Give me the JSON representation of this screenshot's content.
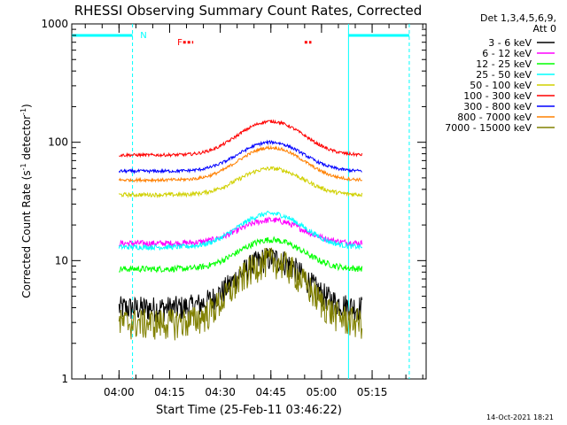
{
  "chart_data": {
    "type": "line",
    "title": "RHESSI Observing Summary Count Rates, Corrected",
    "xlabel": "Start Time (25-Feb-11 03:46:22)",
    "ylabel_main": "Corrected Count Rate (s",
    "ylabel_sup1": "-1",
    "ylabel_mid": " detector",
    "ylabel_sup2": "-1",
    "ylabel_end": ")",
    "yscale": "log",
    "ylim": [
      1,
      1000
    ],
    "xlim_minutes": [
      0,
      105
    ],
    "x_ticks": [
      "04:00",
      "04:15",
      "04:30",
      "04:45",
      "05:00",
      "05:15"
    ],
    "x_tick_minutes": [
      14,
      29,
      44,
      59,
      74,
      89
    ],
    "y_ticks": [
      "1",
      "10",
      "100",
      "1000"
    ],
    "y_tick_values": [
      1,
      10,
      100,
      1000
    ],
    "grid": false,
    "legend_position": "right",
    "legend_header": [
      "Det 1,3,4,5,6,9,",
      "Att 0"
    ],
    "timestamp": "14-Oct-2021 18:21",
    "annotations": [
      {
        "text": "N",
        "color": "#00ffff"
      },
      {
        "text": "F",
        "color": "#ff0000"
      }
    ],
    "night_intervals_minutes": [
      [
        0,
        18
      ],
      [
        82,
        100
      ]
    ],
    "night_level": 800,
    "flare_flags_minutes": [
      [
        33,
        36
      ],
      [
        69,
        71
      ]
    ],
    "flare_flag_level": 700,
    "data_start_minute": 14,
    "data_end_minute": 86,
    "series": [
      {
        "name": "3 - 6 keV",
        "color": "#000000",
        "base": 4,
        "peak": 10.5,
        "noise": 0.25
      },
      {
        "name": "6 - 12 keV",
        "color": "#ff00ff",
        "base": 14,
        "peak": 22,
        "noise": 0.06
      },
      {
        "name": "12 - 25 keV",
        "color": "#00ff00",
        "base": 8.5,
        "peak": 15,
        "noise": 0.06
      },
      {
        "name": "25 - 50 keV",
        "color": "#00ffff",
        "base": 13,
        "peak": 25,
        "noise": 0.05
      },
      {
        "name": "50 - 100 keV",
        "color": "#d0d000",
        "base": 36,
        "peak": 60,
        "noise": 0.04
      },
      {
        "name": "100 - 300 keV",
        "color": "#ff0000",
        "base": 78,
        "peak": 150,
        "noise": 0.03
      },
      {
        "name": "300 - 800 keV",
        "color": "#0000ff",
        "base": 57,
        "peak": 100,
        "noise": 0.03
      },
      {
        "name": "800 - 7000 keV",
        "color": "#ff8000",
        "base": 48,
        "peak": 90,
        "noise": 0.03
      },
      {
        "name": "7000 - 15000 keV",
        "color": "#808000",
        "base": 3,
        "peak": 10,
        "noise": 0.3
      }
    ]
  }
}
